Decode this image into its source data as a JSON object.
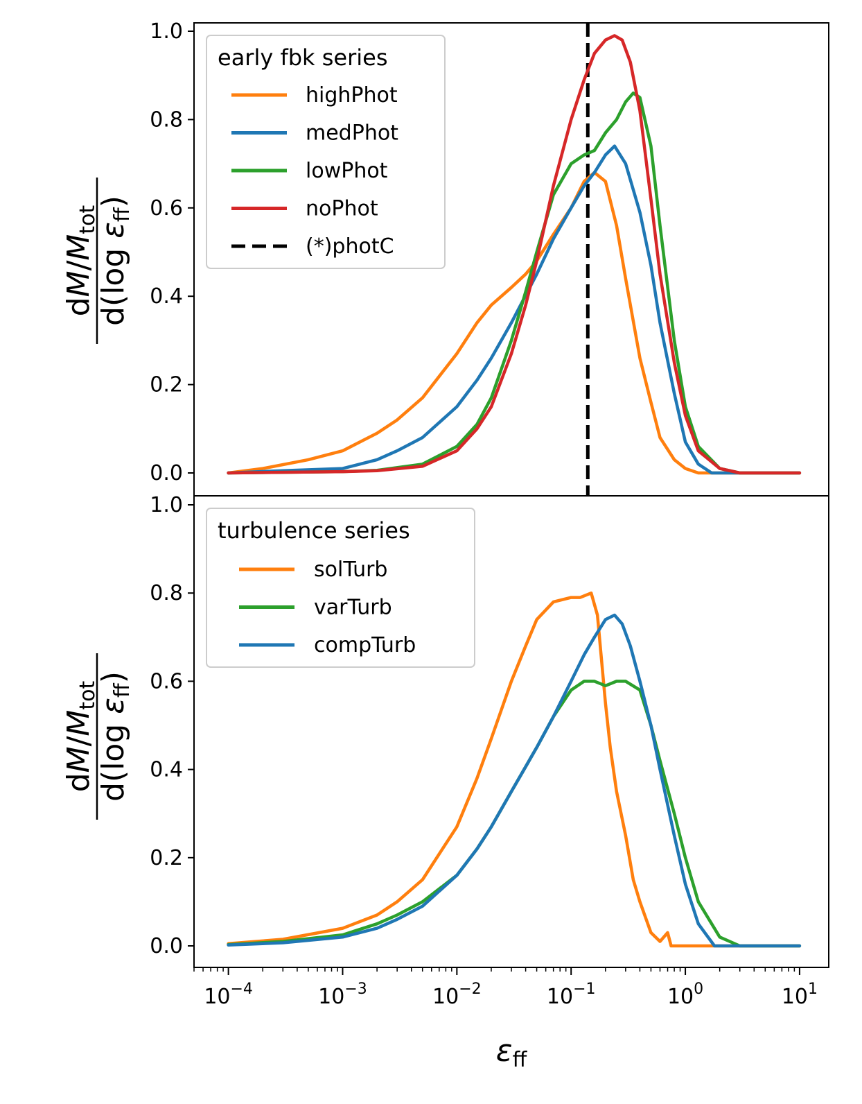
{
  "chart_data": [
    {
      "type": "line",
      "panel": "top",
      "title": "",
      "xscale": "log",
      "xlabel": "ε_ff",
      "ylabel": "dM/M_tot / d(log ε_ff)",
      "ylabel_parts": {
        "num_d": "d",
        "num_M": "M",
        "num_slash": "/",
        "num_Mtot": "M",
        "num_tot": "tot",
        "den_d": "d(log ",
        "den_eps": "ε",
        "den_ff": "ff",
        "den_close": ")"
      },
      "xlim": [
        5e-05,
        18
      ],
      "ylim": [
        -0.05,
        1.02
      ],
      "yticks": [
        0.0,
        0.2,
        0.4,
        0.6,
        0.8,
        1.0
      ],
      "ytick_labels": [
        "0.0",
        "0.2",
        "0.4",
        "0.6",
        "0.8",
        "1.0"
      ],
      "legend": {
        "title": "early fbk series",
        "position": "upper-left"
      },
      "vline": {
        "name": "(*)photC",
        "x": 0.14,
        "color": "#000000",
        "style": "dashed"
      },
      "series": [
        {
          "name": "highPhot",
          "color": "#ff7f0e",
          "x": [
            0.0001,
            0.0002,
            0.0005,
            0.001,
            0.002,
            0.003,
            0.005,
            0.01,
            0.015,
            0.02,
            0.03,
            0.04,
            0.05,
            0.07,
            0.1,
            0.13,
            0.16,
            0.2,
            0.25,
            0.3,
            0.4,
            0.5,
            0.6,
            0.8,
            1.0,
            1.3,
            2.0,
            10.0
          ],
          "y": [
            0.0,
            0.01,
            0.03,
            0.05,
            0.09,
            0.12,
            0.17,
            0.27,
            0.34,
            0.38,
            0.42,
            0.45,
            0.48,
            0.54,
            0.6,
            0.66,
            0.68,
            0.66,
            0.56,
            0.44,
            0.26,
            0.16,
            0.08,
            0.03,
            0.01,
            0.0,
            0.0,
            0.0
          ]
        },
        {
          "name": "medPhot",
          "color": "#1f77b4",
          "x": [
            0.0001,
            0.0003,
            0.001,
            0.002,
            0.003,
            0.005,
            0.01,
            0.015,
            0.02,
            0.03,
            0.05,
            0.07,
            0.1,
            0.13,
            0.16,
            0.2,
            0.24,
            0.3,
            0.4,
            0.5,
            0.6,
            0.8,
            1.0,
            1.3,
            1.7,
            10.0
          ],
          "y": [
            0.0,
            0.005,
            0.01,
            0.03,
            0.05,
            0.08,
            0.15,
            0.21,
            0.26,
            0.34,
            0.45,
            0.53,
            0.6,
            0.65,
            0.68,
            0.72,
            0.74,
            0.7,
            0.59,
            0.47,
            0.34,
            0.18,
            0.07,
            0.02,
            0.0,
            0.0
          ]
        },
        {
          "name": "lowPhot",
          "color": "#2ca02c",
          "x": [
            0.0001,
            0.001,
            0.002,
            0.005,
            0.01,
            0.015,
            0.02,
            0.03,
            0.04,
            0.05,
            0.07,
            0.1,
            0.13,
            0.16,
            0.2,
            0.25,
            0.3,
            0.35,
            0.4,
            0.5,
            0.6,
            0.8,
            1.0,
            1.3,
            2.0,
            3.0,
            10.0
          ],
          "y": [
            0.0,
            0.003,
            0.006,
            0.02,
            0.06,
            0.11,
            0.17,
            0.3,
            0.41,
            0.5,
            0.63,
            0.7,
            0.72,
            0.73,
            0.77,
            0.8,
            0.84,
            0.86,
            0.85,
            0.74,
            0.56,
            0.3,
            0.15,
            0.06,
            0.01,
            0.0,
            0.0
          ]
        },
        {
          "name": "noPhot",
          "color": "#d62728",
          "x": [
            0.0001,
            0.001,
            0.002,
            0.005,
            0.01,
            0.015,
            0.02,
            0.03,
            0.04,
            0.05,
            0.07,
            0.1,
            0.13,
            0.16,
            0.2,
            0.24,
            0.28,
            0.33,
            0.4,
            0.5,
            0.6,
            0.8,
            1.0,
            1.3,
            2.0,
            3.0,
            10.0
          ],
          "y": [
            0.0,
            0.003,
            0.005,
            0.015,
            0.05,
            0.1,
            0.15,
            0.27,
            0.38,
            0.48,
            0.65,
            0.8,
            0.89,
            0.95,
            0.98,
            0.99,
            0.98,
            0.93,
            0.82,
            0.62,
            0.45,
            0.25,
            0.13,
            0.05,
            0.01,
            0.0,
            0.0
          ]
        }
      ]
    },
    {
      "type": "line",
      "panel": "bottom",
      "title": "",
      "xscale": "log",
      "xlabel": "ε_ff",
      "xlabel_parts": {
        "main": "ε",
        "sub": "ff"
      },
      "ylabel": "dM/M_tot / d(log ε_ff)",
      "xlim": [
        5e-05,
        18
      ],
      "ylim": [
        -0.05,
        1.02
      ],
      "xticks": [
        0.0001,
        0.001,
        0.01,
        0.1,
        1,
        10
      ],
      "xtick_labels": [
        {
          "base": "10",
          "exp": "−4"
        },
        {
          "base": "10",
          "exp": "−3"
        },
        {
          "base": "10",
          "exp": "−2"
        },
        {
          "base": "10",
          "exp": "−1"
        },
        {
          "base": "10",
          "exp": "0"
        },
        {
          "base": "10",
          "exp": "1"
        }
      ],
      "yticks": [
        0.0,
        0.2,
        0.4,
        0.6,
        0.8,
        1.0
      ],
      "ytick_labels": [
        "0.0",
        "0.2",
        "0.4",
        "0.6",
        "0.8",
        "1.0"
      ],
      "legend": {
        "title": "turbulence series",
        "position": "upper-left"
      },
      "series": [
        {
          "name": "solTurb",
          "color": "#ff7f0e",
          "x": [
            0.0001,
            0.0003,
            0.001,
            0.002,
            0.003,
            0.005,
            0.01,
            0.015,
            0.02,
            0.03,
            0.04,
            0.05,
            0.07,
            0.1,
            0.12,
            0.15,
            0.17,
            0.2,
            0.22,
            0.25,
            0.3,
            0.35,
            0.4,
            0.5,
            0.6,
            0.7,
            0.75,
            1.0,
            10.0
          ],
          "y": [
            0.005,
            0.015,
            0.04,
            0.07,
            0.1,
            0.15,
            0.27,
            0.38,
            0.47,
            0.6,
            0.68,
            0.74,
            0.78,
            0.79,
            0.79,
            0.8,
            0.75,
            0.55,
            0.45,
            0.35,
            0.25,
            0.15,
            0.1,
            0.03,
            0.01,
            0.03,
            0.0,
            0.0,
            0.0
          ]
        },
        {
          "name": "varTurb",
          "color": "#2ca02c",
          "x": [
            0.0001,
            0.0003,
            0.001,
            0.002,
            0.003,
            0.005,
            0.01,
            0.015,
            0.02,
            0.03,
            0.05,
            0.07,
            0.1,
            0.13,
            0.16,
            0.2,
            0.25,
            0.3,
            0.4,
            0.5,
            0.6,
            0.8,
            1.0,
            1.3,
            2.0,
            3.0,
            10.0
          ],
          "y": [
            0.003,
            0.01,
            0.025,
            0.05,
            0.07,
            0.1,
            0.16,
            0.22,
            0.27,
            0.35,
            0.45,
            0.52,
            0.58,
            0.6,
            0.6,
            0.59,
            0.6,
            0.6,
            0.58,
            0.5,
            0.42,
            0.3,
            0.2,
            0.1,
            0.02,
            0.0,
            0.0
          ]
        },
        {
          "name": "compTurb",
          "color": "#1f77b4",
          "x": [
            0.0001,
            0.0003,
            0.001,
            0.002,
            0.003,
            0.005,
            0.01,
            0.015,
            0.02,
            0.03,
            0.05,
            0.07,
            0.1,
            0.13,
            0.16,
            0.2,
            0.24,
            0.28,
            0.33,
            0.4,
            0.5,
            0.6,
            0.8,
            1.0,
            1.3,
            1.8,
            10.0
          ],
          "y": [
            0.002,
            0.007,
            0.02,
            0.04,
            0.06,
            0.09,
            0.16,
            0.22,
            0.27,
            0.35,
            0.45,
            0.52,
            0.6,
            0.66,
            0.7,
            0.74,
            0.75,
            0.73,
            0.68,
            0.6,
            0.5,
            0.4,
            0.25,
            0.14,
            0.05,
            0.0,
            0.0
          ]
        }
      ]
    }
  ]
}
